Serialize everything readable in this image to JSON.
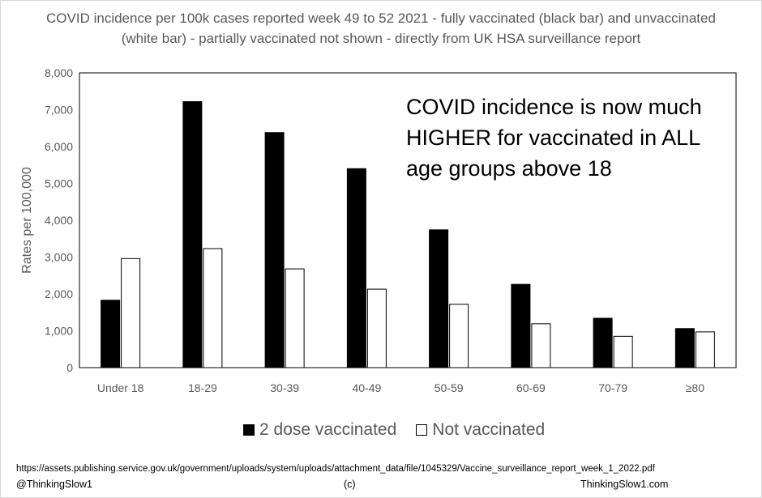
{
  "chart_data": {
    "type": "bar",
    "title": "COVID incidence per 100k cases reported week 49 to 52 2021 - fully vaccinated (black bar) and unvaccinated (white bar) - partially vaccinated not shown - directly from UK HSA surveillance report",
    "ylabel": "Rates per 100,000",
    "xlabel": "",
    "ylim": [
      0,
      8000
    ],
    "yticks": [
      "0",
      "1,000",
      "2,000",
      "3,000",
      "4,000",
      "5,000",
      "6,000",
      "7,000",
      "8,000"
    ],
    "categories": [
      "Under 18",
      "18-29",
      "30-39",
      "40-49",
      "50-59",
      "60-69",
      "70-79",
      "≥80"
    ],
    "series": [
      {
        "name": "2 dose vaccinated",
        "color": "#000000",
        "values": [
          1830,
          7220,
          6380,
          5400,
          3740,
          2260,
          1340,
          1060
        ]
      },
      {
        "name": "Not vaccinated",
        "color": "#ffffff",
        "values": [
          2960,
          3230,
          2680,
          2130,
          1720,
          1190,
          850,
          970
        ]
      }
    ],
    "annotation": "COVID incidence is now much HIGHER for vaccinated in ALL age groups above 18",
    "legend_position": "bottom",
    "grid": false
  },
  "footer": {
    "source": "https://assets.publishing.service.gov.uk/government/uploads/system/uploads/attachment_data/file/1045329/Vaccine_surveillance_report_week_1_2022.pdf",
    "handle": "@ThinkingSlow1",
    "copyright": "(c)",
    "website": "ThinkingSlow1.com"
  }
}
